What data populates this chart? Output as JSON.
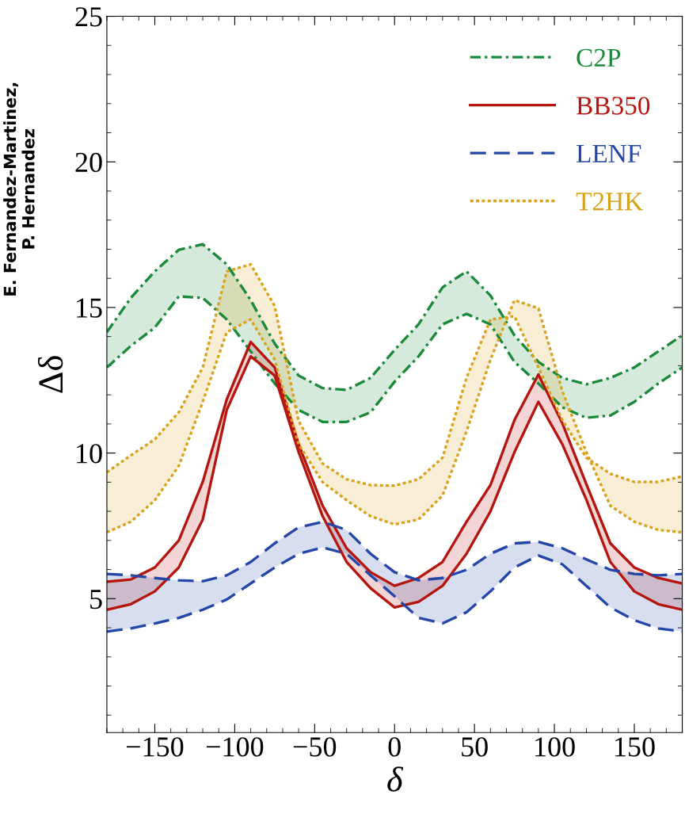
{
  "chart_data": {
    "type": "line",
    "xlabel": "δ",
    "ylabel": "Δδ",
    "x": [
      -180,
      -165,
      -150,
      -135,
      -120,
      -105,
      -90,
      -75,
      -60,
      -45,
      -30,
      -15,
      0,
      15,
      30,
      45,
      60,
      75,
      90,
      105,
      120,
      135,
      150,
      165,
      180
    ],
    "series": [
      {
        "name": "C2P",
        "color": "#1a8a3a",
        "line_style": "dashdot",
        "values": [
          14.15,
          15.33,
          16.24,
          16.98,
          17.17,
          16.48,
          15.25,
          13.76,
          12.66,
          12.23,
          12.17,
          12.58,
          13.54,
          14.42,
          15.69,
          16.24,
          15.41,
          14.04,
          13.13,
          12.58,
          12.36,
          12.58,
          12.94,
          13.49,
          14.04
        ],
        "upper": [
          14.15,
          15.33,
          16.24,
          16.98,
          17.17,
          16.48,
          15.25,
          13.76,
          12.66,
          12.23,
          12.17,
          12.58,
          13.54,
          14.42,
          15.69,
          16.24,
          15.41,
          14.04,
          13.13,
          12.58,
          12.36,
          12.58,
          12.94,
          13.49,
          14.04
        ],
        "lower": [
          12.94,
          13.68,
          14.31,
          15.38,
          15.33,
          14.59,
          13.49,
          12.39,
          11.48,
          11.07,
          11.07,
          11.4,
          12.45,
          13.32,
          14.42,
          14.78,
          14.42,
          13.13,
          12.39,
          11.57,
          11.21,
          11.29,
          11.76,
          12.39,
          12.94
        ]
      },
      {
        "color": "#1a8a3a",
        "line_style": "dashdot",
        "values": [
          12.94,
          13.68,
          14.31,
          15.38,
          15.33,
          14.59,
          13.49,
          12.39,
          11.48,
          11.07,
          11.07,
          11.4,
          12.45,
          13.32,
          14.42,
          14.78,
          14.42,
          13.13,
          12.39,
          11.57,
          11.21,
          11.29,
          11.76,
          12.39,
          12.94
        ]
      },
      {
        "name": "BB350",
        "color": "#b5150f",
        "line_style": "solid",
        "values": [
          5.58,
          5.66,
          6.07,
          7.0,
          9.01,
          11.84,
          13.82,
          12.94,
          10.3,
          8.19,
          6.73,
          5.91,
          5.44,
          5.71,
          6.26,
          7.64,
          8.9,
          11.13,
          12.7,
          11.02,
          8.93,
          6.9,
          6.07,
          5.71,
          5.52
        ],
        "upper": [
          5.58,
          5.66,
          6.07,
          7.0,
          9.01,
          11.84,
          13.82,
          12.94,
          10.3,
          8.19,
          6.73,
          5.91,
          5.44,
          5.71,
          6.26,
          7.64,
          8.9,
          11.13,
          12.7,
          11.02,
          8.93,
          6.9,
          6.07,
          5.71,
          5.52
        ],
        "lower": [
          4.62,
          4.81,
          5.25,
          6.07,
          7.72,
          11.48,
          13.32,
          12.66,
          10.03,
          7.83,
          6.26,
          5.36,
          4.7,
          4.89,
          5.44,
          6.54,
          8.0,
          10.03,
          11.76,
          10.3,
          8.4,
          6.26,
          5.25,
          4.81,
          4.62
        ]
      },
      {
        "color": "#b5150f",
        "line_style": "solid",
        "values": [
          4.62,
          4.81,
          5.25,
          6.07,
          7.72,
          11.48,
          13.32,
          12.66,
          10.03,
          7.83,
          6.26,
          5.36,
          4.7,
          4.89,
          5.44,
          6.54,
          8.0,
          10.03,
          11.76,
          10.3,
          8.4,
          6.26,
          5.25,
          4.81,
          4.62
        ]
      },
      {
        "name": "LENF",
        "color": "#2446a8",
        "line_style": "dashed",
        "values": [
          5.85,
          5.8,
          5.71,
          5.63,
          5.6,
          5.8,
          6.26,
          6.9,
          7.45,
          7.64,
          7.36,
          6.54,
          5.91,
          5.63,
          5.71,
          5.99,
          6.54,
          6.9,
          6.95,
          6.73,
          6.35,
          5.99,
          5.85,
          5.8,
          5.85
        ],
        "upper": [
          5.85,
          5.8,
          5.71,
          5.63,
          5.6,
          5.8,
          6.26,
          6.9,
          7.45,
          7.64,
          7.36,
          6.54,
          5.91,
          5.63,
          5.71,
          5.99,
          6.54,
          6.9,
          6.95,
          6.73,
          6.35,
          5.99,
          5.85,
          5.8,
          5.85
        ],
        "lower": [
          3.87,
          3.98,
          4.15,
          4.34,
          4.62,
          4.97,
          5.52,
          6.07,
          6.54,
          6.76,
          6.54,
          5.8,
          5.08,
          4.34,
          4.15,
          4.53,
          5.25,
          6.07,
          6.48,
          6.18,
          5.44,
          4.7,
          4.26,
          3.98,
          3.87
        ]
      },
      {
        "color": "#2446a8",
        "line_style": "dashed",
        "values": [
          3.87,
          3.98,
          4.15,
          4.34,
          4.62,
          4.97,
          5.52,
          6.07,
          6.54,
          6.76,
          6.54,
          5.8,
          5.08,
          4.34,
          4.15,
          4.53,
          5.25,
          6.07,
          6.48,
          6.18,
          5.44,
          4.7,
          4.26,
          3.98,
          3.87
        ]
      },
      {
        "name": "T2HK",
        "color": "#d9a21b",
        "line_style": "dotted",
        "values": [
          9.34,
          9.92,
          10.47,
          11.4,
          12.94,
          16.24,
          16.48,
          15.05,
          11.1,
          9.64,
          9.1,
          8.9,
          8.88,
          9.1,
          9.84,
          12.58,
          14.59,
          14.7,
          12.94,
          11.13,
          9.84,
          9.29,
          9.01,
          9.01,
          9.2
        ],
        "upper": [
          9.34,
          9.92,
          10.47,
          11.4,
          12.94,
          16.24,
          16.48,
          15.05,
          11.1,
          9.64,
          9.1,
          8.9,
          8.88,
          9.1,
          9.84,
          12.58,
          14.59,
          14.7,
          12.94,
          11.13,
          9.84,
          9.29,
          9.01,
          9.01,
          9.2
        ],
        "lower": [
          7.28,
          7.64,
          8.38,
          9.56,
          11.76,
          14.15,
          14.59,
          13.21,
          10.3,
          9.0,
          8.38,
          7.83,
          7.55,
          7.72,
          8.54,
          10.74,
          13.21,
          15.25,
          14.97,
          12.12,
          10.03,
          8.19,
          7.64,
          7.36,
          7.28
        ]
      },
      {
        "color": "#d9a21b",
        "line_style": "dotted",
        "values": [
          7.28,
          7.64,
          8.38,
          9.56,
          11.76,
          14.15,
          14.59,
          13.21,
          10.3,
          9.0,
          8.38,
          7.83,
          7.55,
          7.72,
          8.54,
          10.74,
          13.21,
          15.25,
          14.97,
          12.12,
          10.03,
          8.19,
          7.64,
          7.36,
          7.28
        ]
      }
    ],
    "xlim": [
      -180,
      180
    ],
    "ylim": [
      0.4,
      25
    ],
    "xticks": [
      {
        "value": -150,
        "label": "−150"
      },
      {
        "value": -100,
        "label": "−100"
      },
      {
        "value": -50,
        "label": "−50"
      },
      0,
      50,
      100,
      150
    ],
    "yticks": [
      5,
      10,
      15,
      20,
      25
    ],
    "grid": false,
    "legend": "top right",
    "annotations": [
      "E. Fernandez-Martinez,\nP. Hernandez"
    ]
  }
}
